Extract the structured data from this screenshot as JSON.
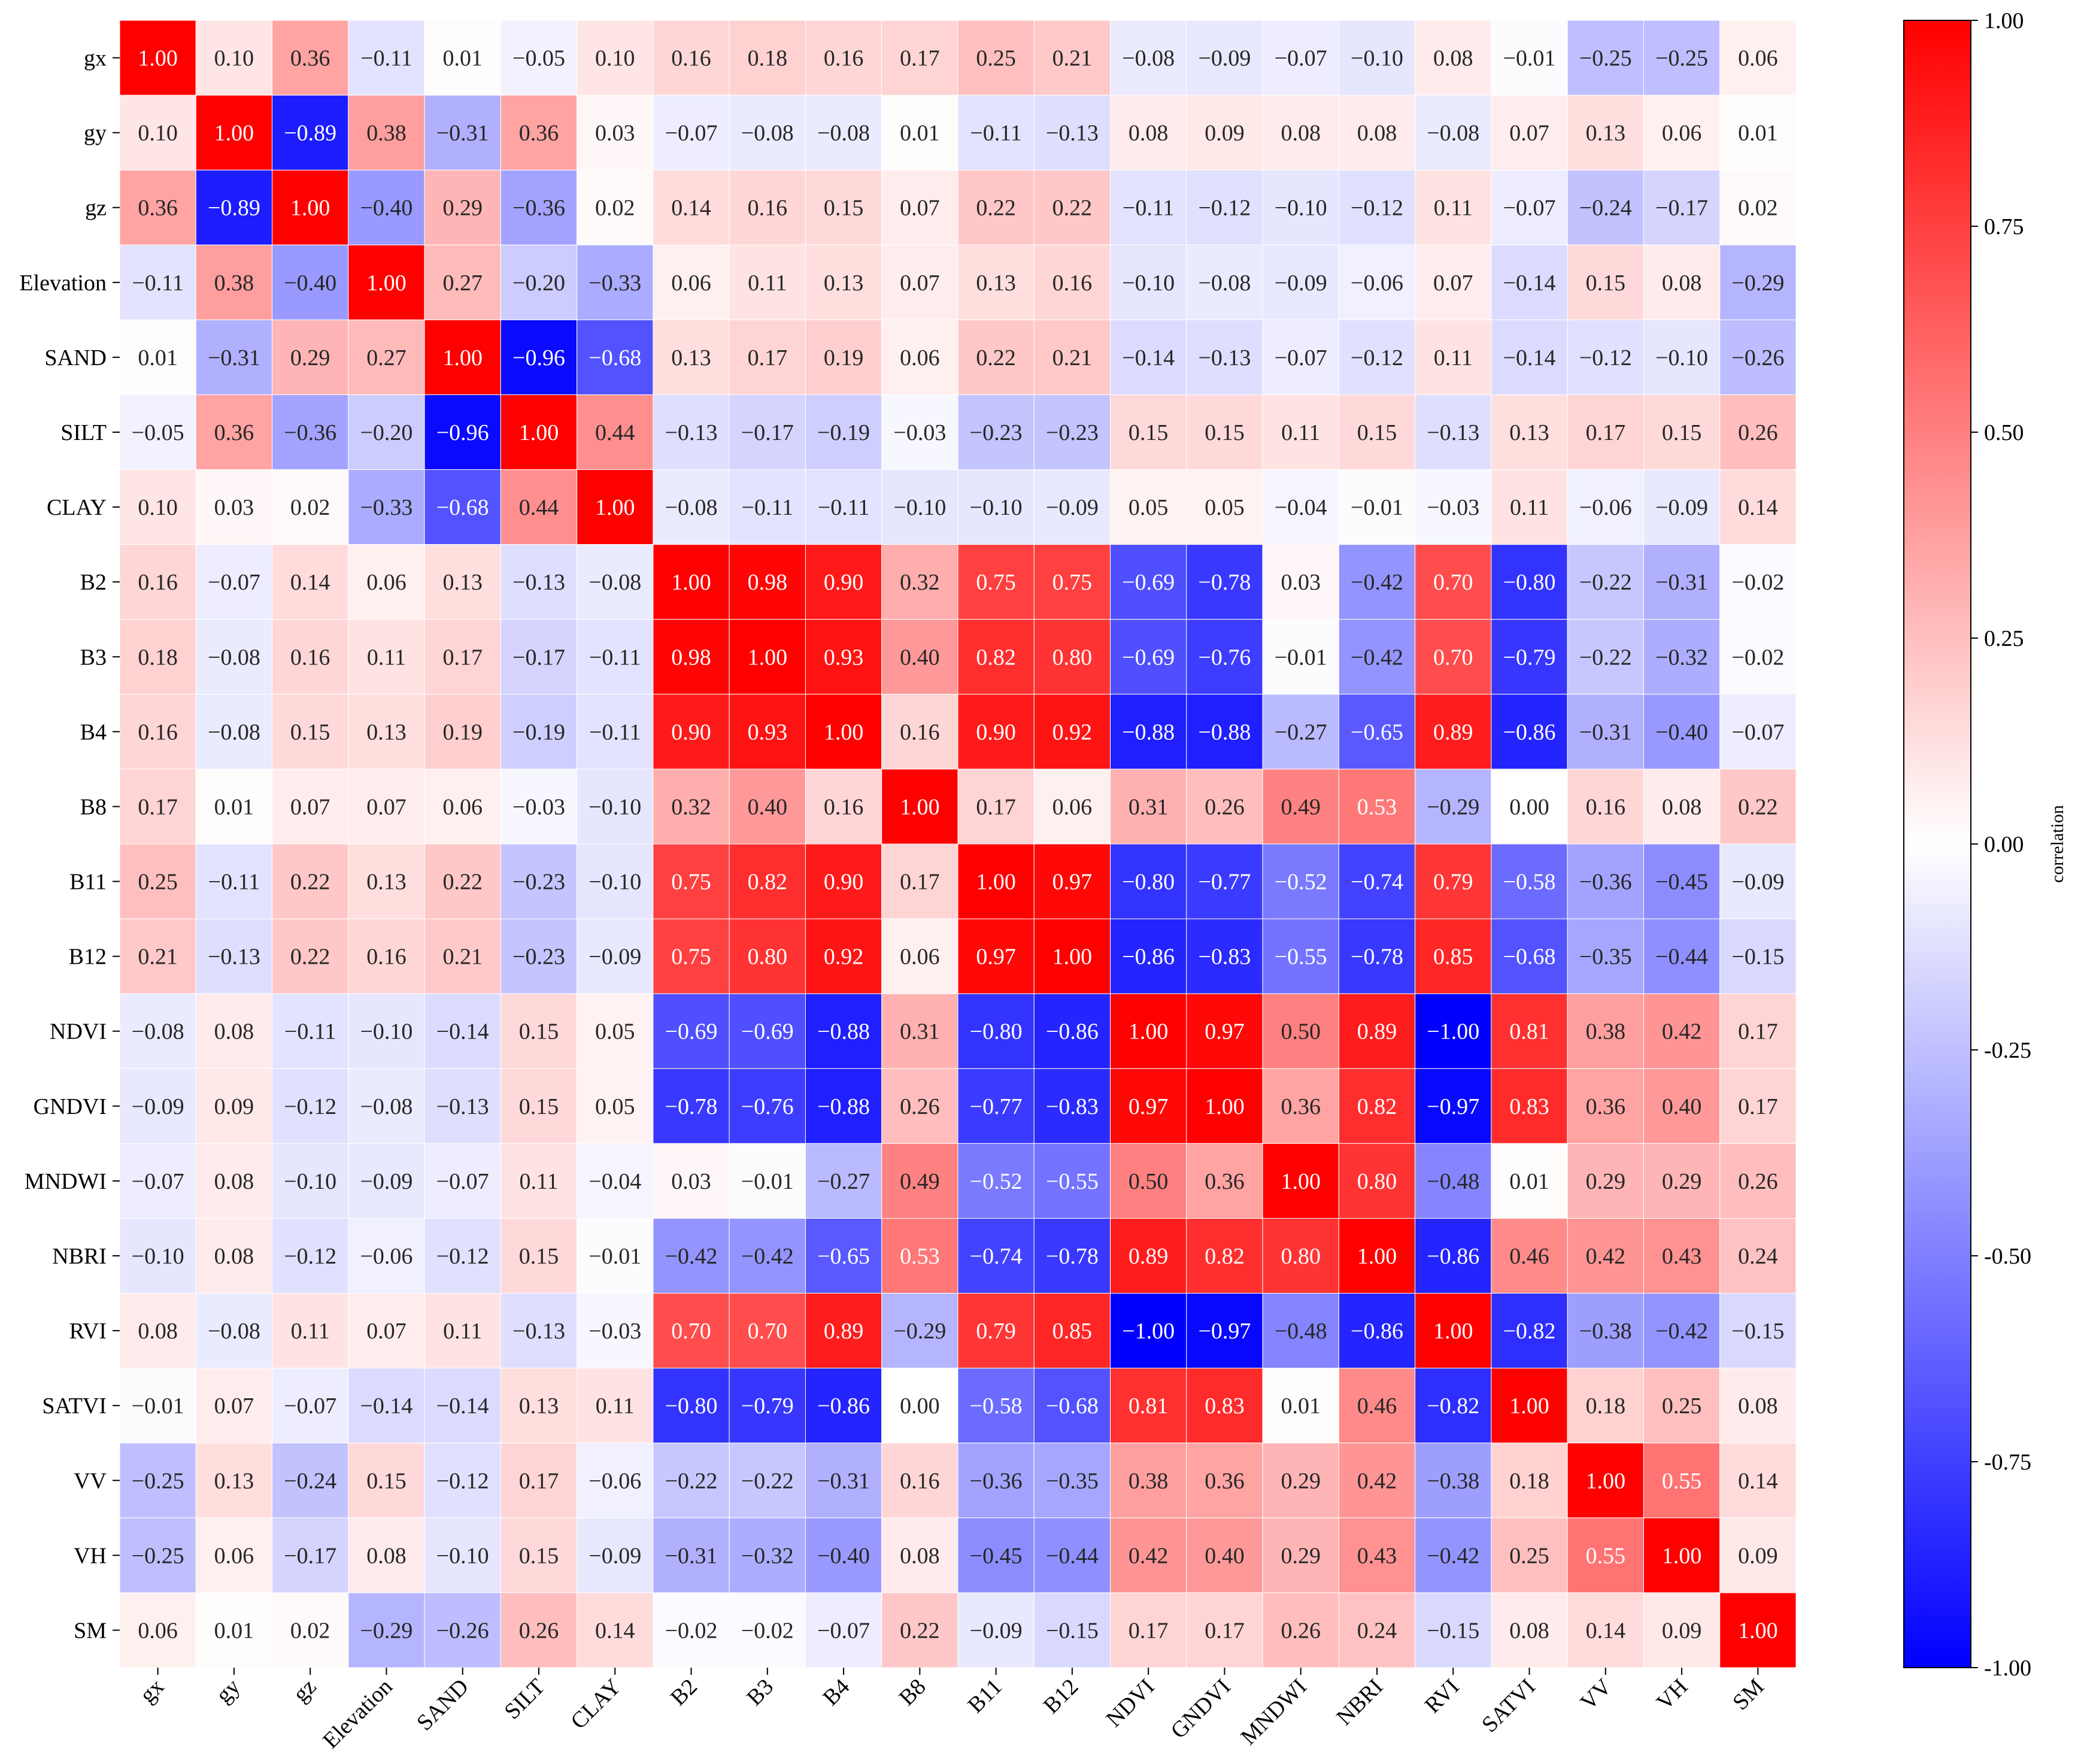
{
  "chart_data": {
    "type": "heatmap",
    "title": "",
    "xlabel": "",
    "ylabel": "",
    "labels": [
      "gx",
      "gy",
      "gz",
      "Elevation",
      "SAND",
      "SILT",
      "CLAY",
      "B2",
      "B3",
      "B4",
      "B8",
      "B11",
      "B12",
      "NDVI",
      "GNDVI",
      "MNDWI",
      "NBRI",
      "RVI",
      "SATVI",
      "VV",
      "VH",
      "SM"
    ],
    "matrix": [
      [
        1.0,
        0.1,
        0.36,
        -0.11,
        0.01,
        -0.05,
        0.1,
        0.16,
        0.18,
        0.16,
        0.17,
        0.25,
        0.21,
        -0.08,
        -0.09,
        -0.07,
        -0.1,
        0.08,
        -0.01,
        -0.25,
        -0.25,
        0.06
      ],
      [
        0.1,
        1.0,
        -0.89,
        0.38,
        -0.31,
        0.36,
        0.03,
        -0.07,
        -0.08,
        -0.08,
        0.01,
        -0.11,
        -0.13,
        0.08,
        0.09,
        0.08,
        0.08,
        -0.08,
        0.07,
        0.13,
        0.06,
        0.01
      ],
      [
        0.36,
        -0.89,
        1.0,
        -0.4,
        0.29,
        -0.36,
        0.02,
        0.14,
        0.16,
        0.15,
        0.07,
        0.22,
        0.22,
        -0.11,
        -0.12,
        -0.1,
        -0.12,
        0.11,
        -0.07,
        -0.24,
        -0.17,
        0.02
      ],
      [
        -0.11,
        0.38,
        -0.4,
        1.0,
        0.27,
        -0.2,
        -0.33,
        0.06,
        0.11,
        0.13,
        0.07,
        0.13,
        0.16,
        -0.1,
        -0.08,
        -0.09,
        -0.06,
        0.07,
        -0.14,
        0.15,
        0.08,
        -0.29
      ],
      [
        0.01,
        -0.31,
        0.29,
        0.27,
        1.0,
        -0.96,
        -0.68,
        0.13,
        0.17,
        0.19,
        0.06,
        0.22,
        0.21,
        -0.14,
        -0.13,
        -0.07,
        -0.12,
        0.11,
        -0.14,
        -0.12,
        -0.1,
        -0.26
      ],
      [
        -0.05,
        0.36,
        -0.36,
        -0.2,
        -0.96,
        1.0,
        0.44,
        -0.13,
        -0.17,
        -0.19,
        -0.03,
        -0.23,
        -0.23,
        0.15,
        0.15,
        0.11,
        0.15,
        -0.13,
        0.13,
        0.17,
        0.15,
        0.26
      ],
      [
        0.1,
        0.03,
        0.02,
        -0.33,
        -0.68,
        0.44,
        1.0,
        -0.08,
        -0.11,
        -0.11,
        -0.1,
        -0.1,
        -0.09,
        0.05,
        0.05,
        -0.04,
        -0.01,
        -0.03,
        0.11,
        -0.06,
        -0.09,
        0.14
      ],
      [
        0.16,
        -0.07,
        0.14,
        0.06,
        0.13,
        -0.13,
        -0.08,
        1.0,
        0.98,
        0.9,
        0.32,
        0.75,
        0.75,
        -0.69,
        -0.78,
        0.03,
        -0.42,
        0.7,
        -0.8,
        -0.22,
        -0.31,
        -0.02
      ],
      [
        0.18,
        -0.08,
        0.16,
        0.11,
        0.17,
        -0.17,
        -0.11,
        0.98,
        1.0,
        0.93,
        0.4,
        0.82,
        0.8,
        -0.69,
        -0.76,
        -0.01,
        -0.42,
        0.7,
        -0.79,
        -0.22,
        -0.32,
        -0.02
      ],
      [
        0.16,
        -0.08,
        0.15,
        0.13,
        0.19,
        -0.19,
        -0.11,
        0.9,
        0.93,
        1.0,
        0.16,
        0.9,
        0.92,
        -0.88,
        -0.88,
        -0.27,
        -0.65,
        0.89,
        -0.86,
        -0.31,
        -0.4,
        -0.07
      ],
      [
        0.17,
        0.01,
        0.07,
        0.07,
        0.06,
        -0.03,
        -0.1,
        0.32,
        0.4,
        0.16,
        1.0,
        0.17,
        0.06,
        0.31,
        0.26,
        0.49,
        0.53,
        -0.29,
        0.0,
        0.16,
        0.08,
        0.22
      ],
      [
        0.25,
        -0.11,
        0.22,
        0.13,
        0.22,
        -0.23,
        -0.1,
        0.75,
        0.82,
        0.9,
        0.17,
        1.0,
        0.97,
        -0.8,
        -0.77,
        -0.52,
        -0.74,
        0.79,
        -0.58,
        -0.36,
        -0.45,
        -0.09
      ],
      [
        0.21,
        -0.13,
        0.22,
        0.16,
        0.21,
        -0.23,
        -0.09,
        0.75,
        0.8,
        0.92,
        0.06,
        0.97,
        1.0,
        -0.86,
        -0.83,
        -0.55,
        -0.78,
        0.85,
        -0.68,
        -0.35,
        -0.44,
        -0.15
      ],
      [
        -0.08,
        0.08,
        -0.11,
        -0.1,
        -0.14,
        0.15,
        0.05,
        -0.69,
        -0.69,
        -0.88,
        0.31,
        -0.8,
        -0.86,
        1.0,
        0.97,
        0.5,
        0.89,
        -1.0,
        0.81,
        0.38,
        0.42,
        0.17
      ],
      [
        -0.09,
        0.09,
        -0.12,
        -0.08,
        -0.13,
        0.15,
        0.05,
        -0.78,
        -0.76,
        -0.88,
        0.26,
        -0.77,
        -0.83,
        0.97,
        1.0,
        0.36,
        0.82,
        -0.97,
        0.83,
        0.36,
        0.4,
        0.17
      ],
      [
        -0.07,
        0.08,
        -0.1,
        -0.09,
        -0.07,
        0.11,
        -0.04,
        0.03,
        -0.01,
        -0.27,
        0.49,
        -0.52,
        -0.55,
        0.5,
        0.36,
        1.0,
        0.8,
        -0.48,
        0.01,
        0.29,
        0.29,
        0.26
      ],
      [
        -0.1,
        0.08,
        -0.12,
        -0.06,
        -0.12,
        0.15,
        -0.01,
        -0.42,
        -0.42,
        -0.65,
        0.53,
        -0.74,
        -0.78,
        0.89,
        0.82,
        0.8,
        1.0,
        -0.86,
        0.46,
        0.42,
        0.43,
        0.24
      ],
      [
        0.08,
        -0.08,
        0.11,
        0.07,
        0.11,
        -0.13,
        -0.03,
        0.7,
        0.7,
        0.89,
        -0.29,
        0.79,
        0.85,
        -1.0,
        -0.97,
        -0.48,
        -0.86,
        1.0,
        -0.82,
        -0.38,
        -0.42,
        -0.15
      ],
      [
        -0.01,
        0.07,
        -0.07,
        -0.14,
        -0.14,
        0.13,
        0.11,
        -0.8,
        -0.79,
        -0.86,
        0.0,
        -0.58,
        -0.68,
        0.81,
        0.83,
        0.01,
        0.46,
        -0.82,
        1.0,
        0.18,
        0.25,
        0.08
      ],
      [
        -0.25,
        0.13,
        -0.24,
        0.15,
        -0.12,
        0.17,
        -0.06,
        -0.22,
        -0.22,
        -0.31,
        0.16,
        -0.36,
        -0.35,
        0.38,
        0.36,
        0.29,
        0.42,
        -0.38,
        0.18,
        1.0,
        0.55,
        0.14
      ],
      [
        -0.25,
        0.06,
        -0.17,
        0.08,
        -0.1,
        0.15,
        -0.09,
        -0.31,
        -0.32,
        -0.4,
        0.08,
        -0.45,
        -0.44,
        0.42,
        0.4,
        0.29,
        0.43,
        -0.42,
        0.25,
        0.55,
        1.0,
        0.09
      ],
      [
        0.06,
        0.01,
        0.02,
        -0.29,
        -0.26,
        0.26,
        0.14,
        -0.02,
        -0.02,
        -0.07,
        0.22,
        -0.09,
        -0.15,
        0.17,
        0.17,
        0.26,
        0.24,
        -0.15,
        0.08,
        0.14,
        0.09,
        1.0
      ]
    ],
    "vmin": -1.0,
    "vmax": 1.0,
    "colormap": "bwr",
    "colors": {
      "low": "#0000ff",
      "mid": "#ffffff",
      "high": "#ff0000"
    },
    "colorbar": {
      "label": "correlation",
      "ticks": [
        1.0,
        0.75,
        0.5,
        0.25,
        0.0,
        -0.25,
        -0.5,
        -0.75,
        -1.0
      ],
      "tick_labels": [
        "1.00",
        "0.75",
        "0.50",
        "0.25",
        "0.00",
        "-0.25",
        "-0.50",
        "-0.75",
        "-1.00"
      ],
      "placement": "right"
    },
    "cell_label_format": "2-decimals, unicode minus for negatives",
    "legend": "colorbar"
  }
}
